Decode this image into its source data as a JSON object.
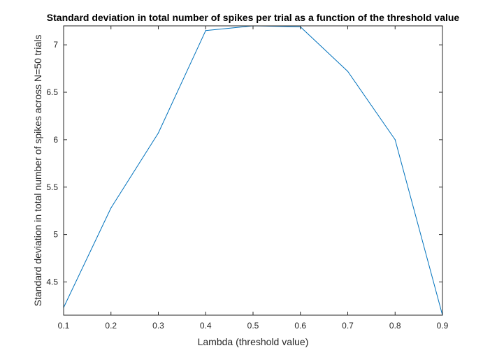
{
  "chart_data": {
    "type": "line",
    "title": "Standard deviation in total number of spikes per trial as a function of the threshold value",
    "xlabel": "Lambda (threshold value)",
    "ylabel": "Standard deviation in total number of spikes across N=50 trials",
    "xlim": [
      0.1,
      0.9
    ],
    "ylim": [
      4.15,
      7.2
    ],
    "grid": false,
    "xticks": [
      0.1,
      0.2,
      0.3,
      0.4,
      0.5,
      0.6,
      0.7,
      0.8,
      0.9
    ],
    "xtick_labels": [
      "0.1",
      "0.2",
      "0.3",
      "0.4",
      "0.5",
      "0.6",
      "0.7",
      "0.8",
      "0.9"
    ],
    "yticks": [
      4.5,
      5,
      5.5,
      6,
      6.5,
      7
    ],
    "ytick_labels": [
      "4.5",
      "5",
      "5.5",
      "6",
      "6.5",
      "7"
    ],
    "series": [
      {
        "color": "#0072BD",
        "x": [
          0.1,
          0.2,
          0.3,
          0.4,
          0.5,
          0.6,
          0.7,
          0.8,
          0.9
        ],
        "y": [
          4.23,
          5.28,
          6.07,
          7.15,
          7.2,
          7.19,
          6.72,
          6.0,
          4.15
        ]
      }
    ]
  }
}
